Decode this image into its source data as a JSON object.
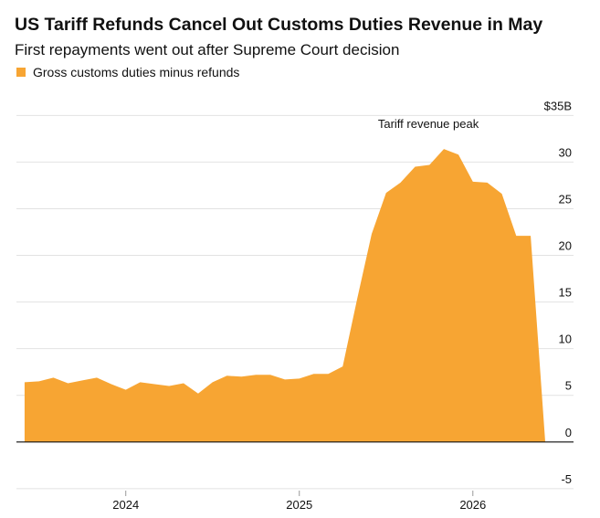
{
  "chart_data": {
    "type": "area",
    "title": "US Tariff Refunds Cancel Out Customs Duties Revenue in May",
    "subtitle": "First repayments went out after Supreme Court decision",
    "annotation": "Tariff revenue peak",
    "x": [
      2023.417,
      2023.5,
      2023.583,
      2023.667,
      2023.75,
      2023.833,
      2023.917,
      2024.0,
      2024.083,
      2024.167,
      2024.25,
      2024.333,
      2024.417,
      2024.5,
      2024.583,
      2024.667,
      2024.75,
      2024.833,
      2024.917,
      2025.0,
      2025.083,
      2025.167,
      2025.25,
      2025.333,
      2025.417,
      2025.5,
      2025.583,
      2025.667,
      2025.75,
      2025.833,
      2025.917,
      2026.0,
      2026.083,
      2026.167,
      2026.25,
      2026.333,
      2026.417
    ],
    "series": [
      {
        "name": "Gross customs duties minus refunds",
        "color": "#f7a533",
        "values": [
          6.4,
          6.5,
          6.9,
          6.3,
          6.6,
          6.9,
          6.2,
          5.6,
          6.4,
          6.2,
          6.0,
          6.3,
          5.2,
          6.4,
          7.1,
          7.0,
          7.2,
          7.2,
          6.7,
          6.8,
          7.3,
          7.3,
          8.1,
          15.3,
          22.3,
          26.7,
          27.8,
          29.5,
          29.7,
          31.4,
          30.8,
          27.9,
          27.8,
          26.6,
          22.1,
          22.1,
          0
        ]
      }
    ],
    "xlim": [
      2023.37,
      2026.58
    ],
    "xticks": [
      2024,
      2025,
      2026
    ],
    "ylim": [
      -5.6,
      36.5
    ],
    "yticks": [
      -5,
      0,
      5,
      10,
      15,
      20,
      25,
      30,
      {
        "value": 35,
        "label": "$35B"
      }
    ],
    "grid": true
  }
}
